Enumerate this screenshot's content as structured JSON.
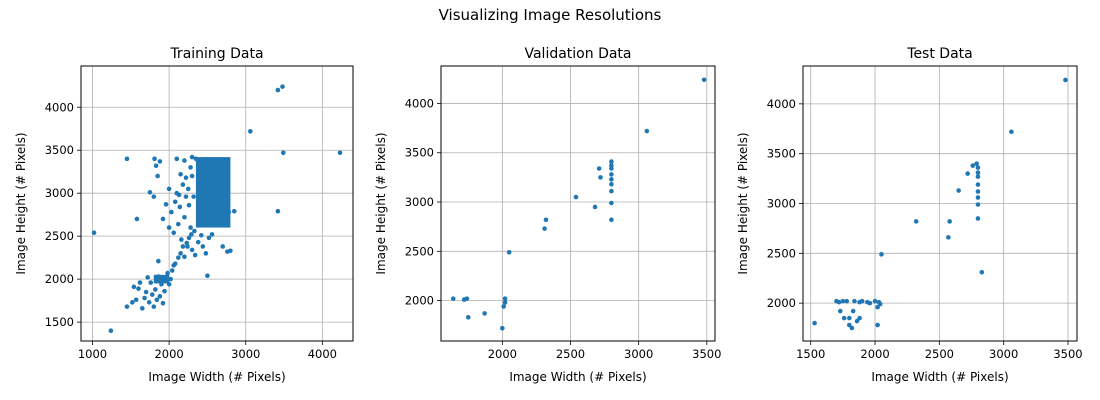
{
  "figure": {
    "suptitle": "Visualizing Image Resolutions",
    "colors": {
      "marker": "#1f77b4",
      "grid": "#b0b0b0",
      "axes": "#000000",
      "background": "#ffffff"
    }
  },
  "chart_data": [
    {
      "type": "scatter",
      "title": "Training Data",
      "xlabel": "Image Width (# Pixels)",
      "ylabel": "Image Height (# Pixels)",
      "xlim": [
        850,
        4400
      ],
      "ylim": [
        1280,
        4480
      ],
      "xticks": [
        1000,
        2000,
        3000,
        4000
      ],
      "yticks": [
        1500,
        2000,
        2500,
        3000,
        3500,
        4000
      ],
      "grid": true,
      "dense_regions": [
        {
          "x_range": [
            2350,
            2800
          ],
          "y_range": [
            2600,
            3420
          ]
        },
        {
          "x_range": [
            1800,
            2000
          ],
          "y_range": [
            1950,
            2050
          ]
        }
      ],
      "points": [
        [
          1020,
          2540
        ],
        [
          1240,
          1400
        ],
        [
          1450,
          3400
        ],
        [
          1580,
          2700
        ],
        [
          1450,
          1680
        ],
        [
          1520,
          1730
        ],
        [
          1540,
          1910
        ],
        [
          1570,
          1760
        ],
        [
          1600,
          1890
        ],
        [
          1620,
          1960
        ],
        [
          1650,
          1660
        ],
        [
          1680,
          1780
        ],
        [
          1700,
          1850
        ],
        [
          1720,
          2020
        ],
        [
          1740,
          1730
        ],
        [
          1760,
          1960
        ],
        [
          1780,
          1820
        ],
        [
          1800,
          1680
        ],
        [
          1820,
          1880
        ],
        [
          1840,
          1760
        ],
        [
          1860,
          2030
        ],
        [
          1880,
          1800
        ],
        [
          1900,
          1940
        ],
        [
          1920,
          1720
        ],
        [
          1940,
          1860
        ],
        [
          1960,
          2000
        ],
        [
          1980,
          2070
        ],
        [
          2000,
          1940
        ],
        [
          2020,
          2000
        ],
        [
          1860,
          2210
        ],
        [
          1750,
          3010
        ],
        [
          1800,
          2960
        ],
        [
          1810,
          3400
        ],
        [
          1830,
          3320
        ],
        [
          1850,
          3200
        ],
        [
          1880,
          3370
        ],
        [
          1920,
          2700
        ],
        [
          1960,
          2870
        ],
        [
          2000,
          2600
        ],
        [
          2000,
          3050
        ],
        [
          2030,
          2780
        ],
        [
          2060,
          2540
        ],
        [
          2080,
          2900
        ],
        [
          2100,
          3000
        ],
        [
          2120,
          2640
        ],
        [
          2140,
          2840
        ],
        [
          2160,
          2460
        ],
        [
          2180,
          3100
        ],
        [
          2200,
          2720
        ],
        [
          2220,
          2960
        ],
        [
          2240,
          2380
        ],
        [
          2260,
          2860
        ],
        [
          2280,
          2600
        ],
        [
          2300,
          3200
        ],
        [
          2320,
          2960
        ],
        [
          2040,
          2100
        ],
        [
          2060,
          2160
        ],
        [
          2080,
          2180
        ],
        [
          2120,
          2250
        ],
        [
          2150,
          2300
        ],
        [
          2180,
          2380
        ],
        [
          2200,
          2260
        ],
        [
          2230,
          2420
        ],
        [
          2260,
          2480
        ],
        [
          2290,
          2520
        ],
        [
          2330,
          2560
        ],
        [
          2300,
          2340
        ],
        [
          2340,
          2280
        ],
        [
          2380,
          2430
        ],
        [
          2420,
          2510
        ],
        [
          2440,
          2380
        ],
        [
          2480,
          2300
        ],
        [
          2500,
          2040
        ],
        [
          2520,
          2480
        ],
        [
          2560,
          2520
        ],
        [
          2700,
          2380
        ],
        [
          2760,
          2320
        ],
        [
          2800,
          2330
        ],
        [
          2780,
          2780
        ],
        [
          2850,
          2790
        ],
        [
          2100,
          3400
        ],
        [
          2200,
          3380
        ],
        [
          2300,
          3420
        ],
        [
          2350,
          3400
        ],
        [
          2280,
          3300
        ],
        [
          2220,
          3180
        ],
        [
          2150,
          3220
        ],
        [
          2130,
          2980
        ],
        [
          2250,
          3050
        ],
        [
          3060,
          3720
        ],
        [
          3420,
          4200
        ],
        [
          3480,
          4240
        ],
        [
          3420,
          2790
        ],
        [
          3490,
          3470
        ],
        [
          4230,
          3470
        ]
      ]
    },
    {
      "type": "scatter",
      "title": "Validation Data",
      "xlabel": "Image Width (# Pixels)",
      "ylabel": "Image Height (# Pixels)",
      "xlim": [
        1550,
        3560
      ],
      "ylim": [
        1590,
        4380
      ],
      "xticks": [
        2000,
        2500,
        3000,
        3500
      ],
      "yticks": [
        2000,
        2500,
        3000,
        3500,
        4000
      ],
      "grid": true,
      "points": [
        [
          1640,
          2020
        ],
        [
          1720,
          2010
        ],
        [
          1740,
          2020
        ],
        [
          1750,
          1830
        ],
        [
          1870,
          1870
        ],
        [
          2000,
          1720
        ],
        [
          2010,
          1940
        ],
        [
          2020,
          2020
        ],
        [
          2020,
          1980
        ],
        [
          2050,
          2490
        ],
        [
          2310,
          2730
        ],
        [
          2320,
          2820
        ],
        [
          2540,
          3050
        ],
        [
          2680,
          2950
        ],
        [
          2710,
          3340
        ],
        [
          2720,
          3250
        ],
        [
          2800,
          2820
        ],
        [
          2800,
          2990
        ],
        [
          2800,
          3110
        ],
        [
          2800,
          3180
        ],
        [
          2800,
          3230
        ],
        [
          2800,
          3280
        ],
        [
          2800,
          3340
        ],
        [
          2800,
          3370
        ],
        [
          2800,
          3410
        ],
        [
          3060,
          3720
        ],
        [
          3480,
          4240
        ]
      ]
    },
    {
      "type": "scatter",
      "title": "Test Data",
      "xlabel": "Image Width (# Pixels)",
      "ylabel": "Image Height (# Pixels)",
      "xlim": [
        1440,
        3570
      ],
      "ylim": [
        1620,
        4380
      ],
      "xticks": [
        1500,
        2000,
        2500,
        3000,
        3500
      ],
      "yticks": [
        2000,
        2500,
        3000,
        3500,
        4000
      ],
      "grid": true,
      "points": [
        [
          1530,
          1800
        ],
        [
          1700,
          2020
        ],
        [
          1720,
          2010
        ],
        [
          1730,
          1920
        ],
        [
          1750,
          2020
        ],
        [
          1760,
          1850
        ],
        [
          1780,
          2020
        ],
        [
          1800,
          1850
        ],
        [
          1800,
          1780
        ],
        [
          1820,
          1750
        ],
        [
          1830,
          1920
        ],
        [
          1840,
          2020
        ],
        [
          1860,
          1820
        ],
        [
          1880,
          2010
        ],
        [
          1880,
          1850
        ],
        [
          1900,
          2020
        ],
        [
          1940,
          2010
        ],
        [
          1960,
          2000
        ],
        [
          2000,
          2020
        ],
        [
          2020,
          1780
        ],
        [
          2020,
          1960
        ],
        [
          2030,
          2010
        ],
        [
          2040,
          1990
        ],
        [
          2050,
          2490
        ],
        [
          2320,
          2820
        ],
        [
          2570,
          2660
        ],
        [
          2580,
          2820
        ],
        [
          2650,
          3130
        ],
        [
          2720,
          3300
        ],
        [
          2760,
          3380
        ],
        [
          2790,
          3400
        ],
        [
          2800,
          3360
        ],
        [
          2800,
          3310
        ],
        [
          2800,
          3270
        ],
        [
          2800,
          3190
        ],
        [
          2800,
          3120
        ],
        [
          2800,
          3060
        ],
        [
          2800,
          2990
        ],
        [
          2800,
          2850
        ],
        [
          2830,
          2310
        ],
        [
          3060,
          3720
        ],
        [
          3480,
          4240
        ]
      ]
    }
  ]
}
